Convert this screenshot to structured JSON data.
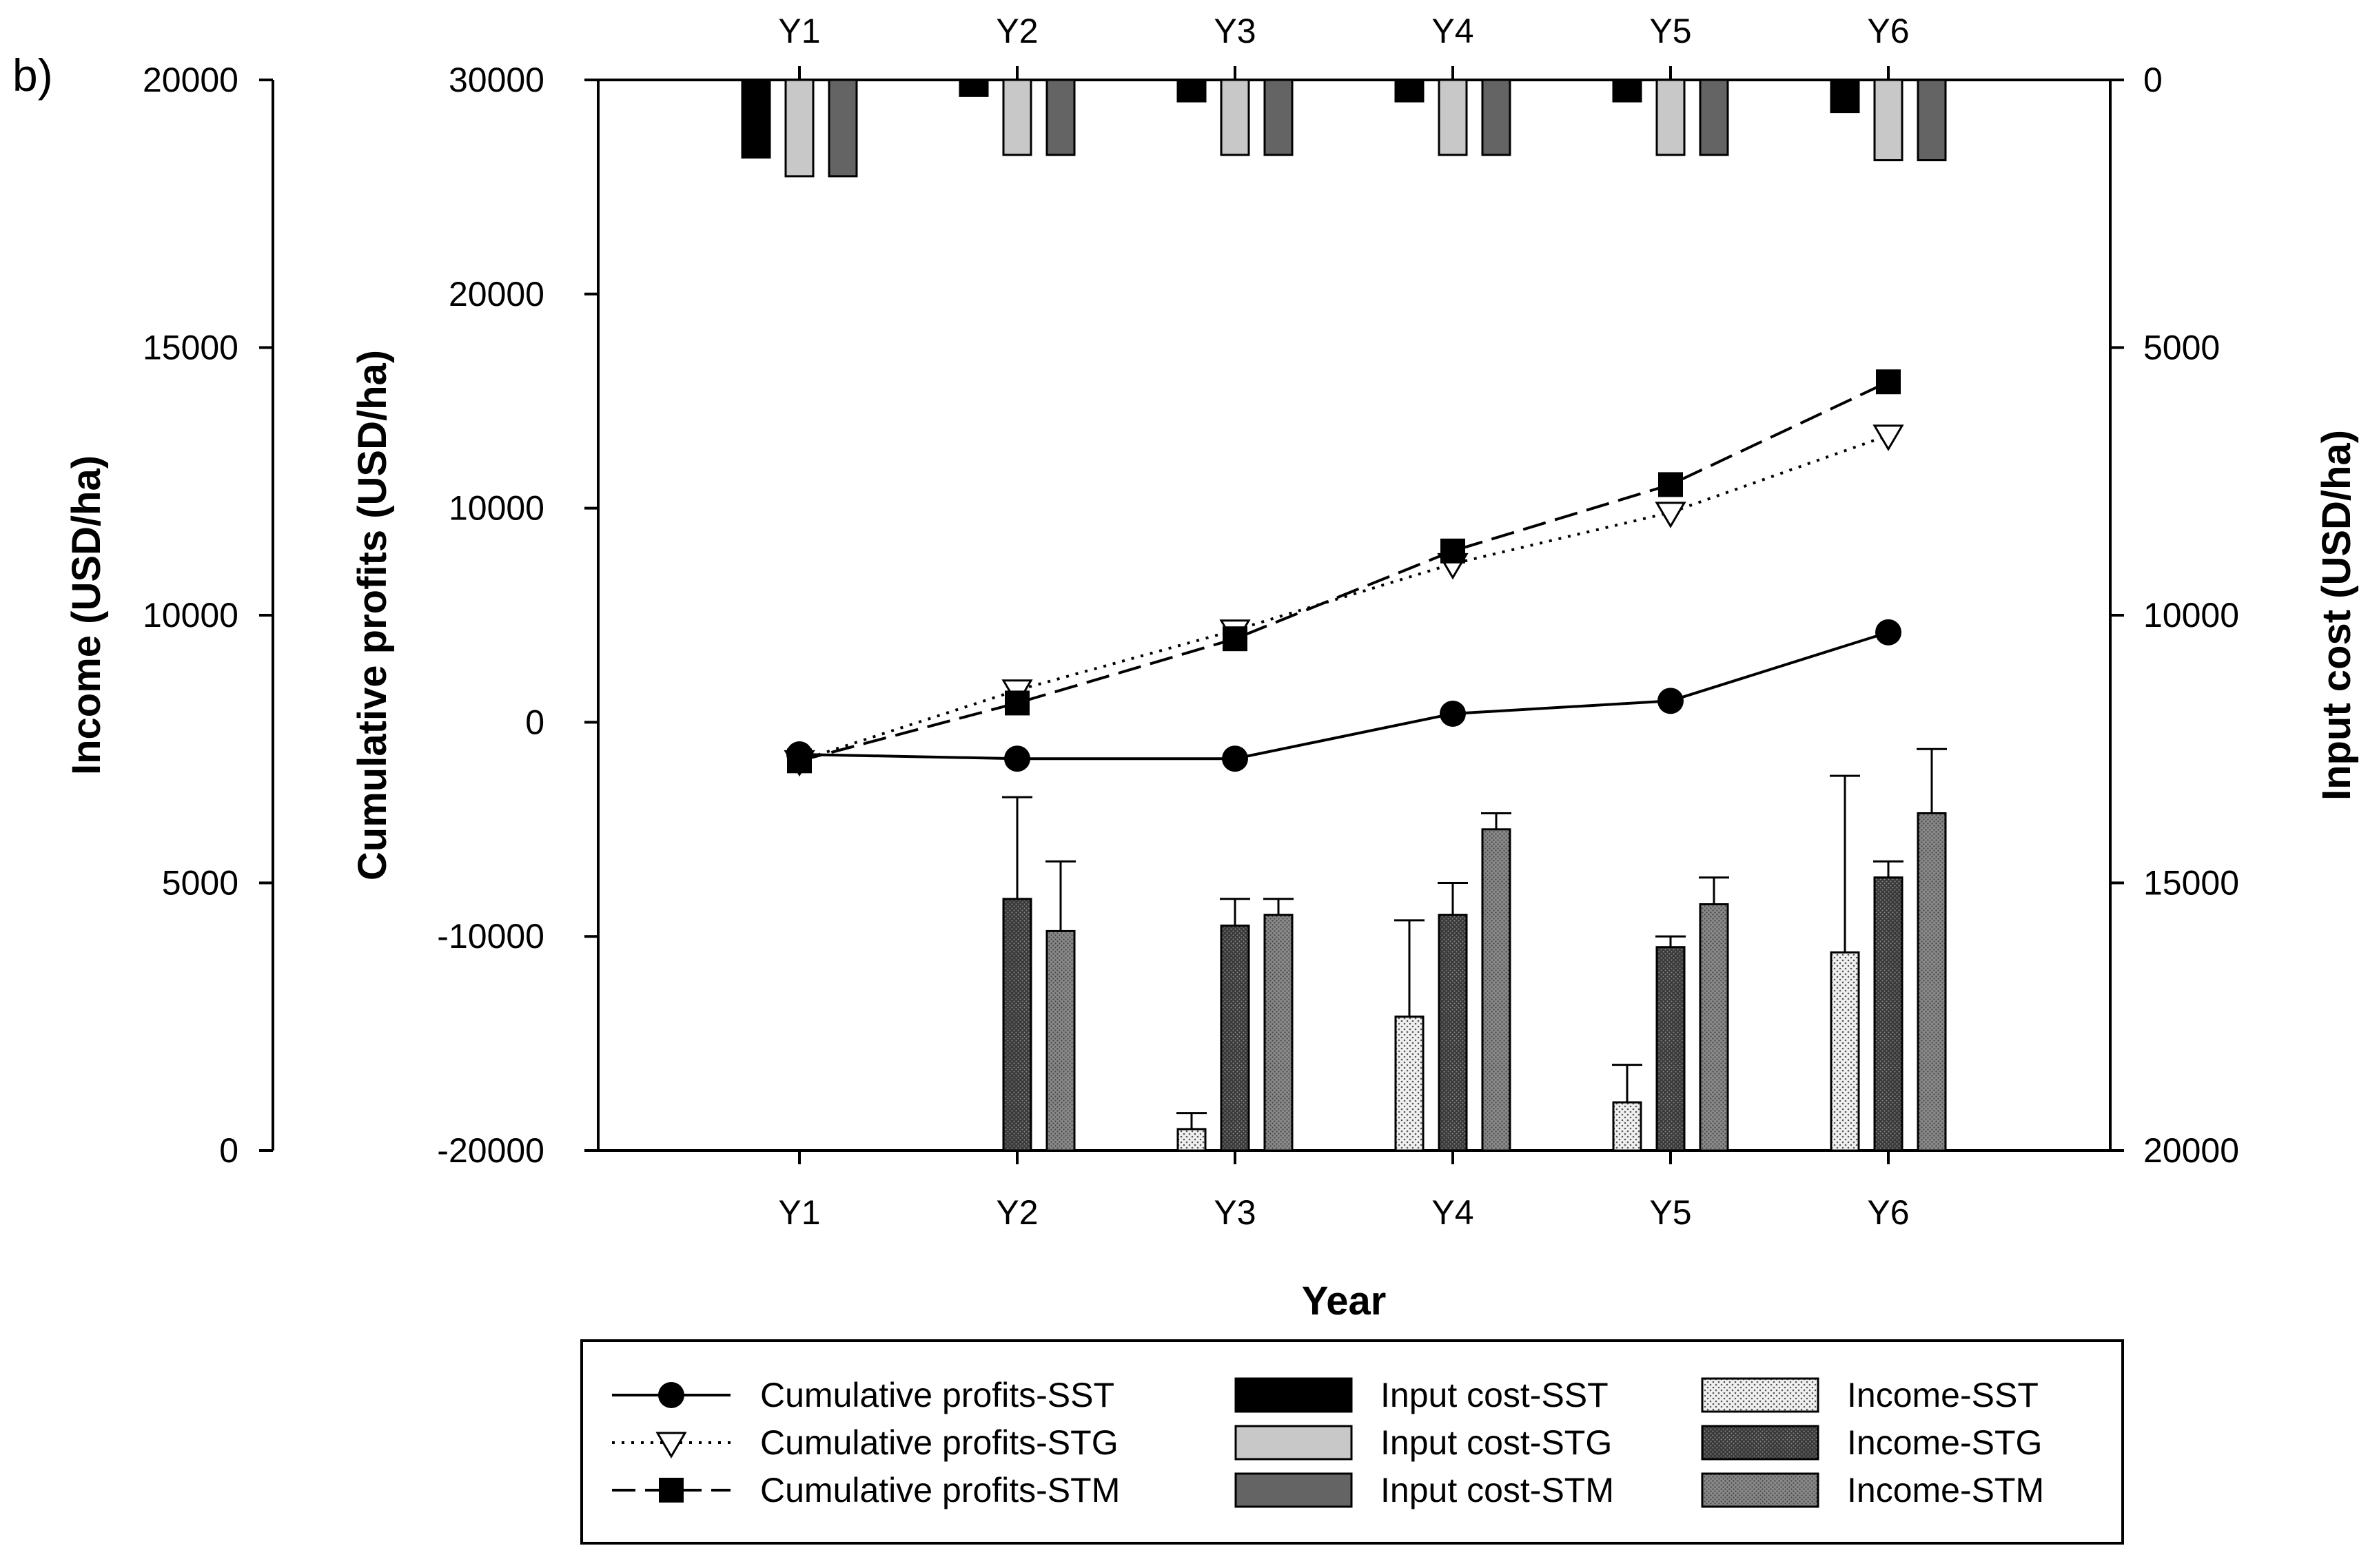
{
  "chart_data": {
    "type": "bar",
    "panel_label": "b)",
    "categories": [
      "Y1",
      "Y2",
      "Y3",
      "Y4",
      "Y5",
      "Y6"
    ],
    "xlabel": "Year",
    "axes": {
      "income": {
        "label": "Income (USD/ha)",
        "ylim": [
          0,
          20000
        ],
        "ticks": [
          "0",
          "5000",
          "10000",
          "15000",
          "20000"
        ]
      },
      "profits": {
        "label": "Cumulative profits (USD/ha)",
        "ylim": [
          -20000,
          30000
        ],
        "ticks": [
          "-20000",
          "-10000",
          "0",
          "10000",
          "20000",
          "30000"
        ]
      },
      "input_cost": {
        "label": "Input cost (USD/ha)",
        "ylim": [
          0,
          20000
        ],
        "inverted": true,
        "ticks": [
          "0",
          "5000",
          "10000",
          "15000",
          "20000"
        ]
      }
    },
    "profit_series": [
      {
        "name": "Cumulative profits-SST",
        "style": "solid",
        "marker": "circle",
        "values": [
          -1500,
          -1700,
          -1700,
          400,
          1000,
          4200
        ]
      },
      {
        "name": "Cumulative profits-STG",
        "style": "dotted",
        "marker": "triangle-down",
        "values": [
          -1800,
          1500,
          4300,
          7400,
          9800,
          13400
        ]
      },
      {
        "name": "Cumulative profits-STM",
        "style": "dashed",
        "marker": "square",
        "values": [
          -1800,
          900,
          3900,
          8000,
          11100,
          15900
        ]
      }
    ],
    "input_cost_series": [
      {
        "name": "Input cost-SST",
        "color": "#000000",
        "values": [
          1450,
          300,
          400,
          400,
          400,
          600
        ]
      },
      {
        "name": "Input cost-STG",
        "color": "#c8c8c8",
        "values": [
          1800,
          1400,
          1400,
          1400,
          1400,
          1500
        ]
      },
      {
        "name": "Input cost-STM",
        "color": "#646464",
        "values": [
          1800,
          1400,
          1400,
          1400,
          1400,
          1500
        ]
      }
    ],
    "income_series": [
      {
        "name": "Income-SST",
        "pattern": "light-dots",
        "values": [
          0,
          0,
          400,
          2500,
          900,
          3700
        ],
        "errors": [
          0,
          0,
          300,
          1800,
          700,
          3300
        ]
      },
      {
        "name": "Income-STG",
        "pattern": "dark-dots",
        "values": [
          0,
          4700,
          4200,
          4400,
          3800,
          5100
        ],
        "errors": [
          0,
          1900,
          500,
          600,
          200,
          300
        ]
      },
      {
        "name": "Income-STM",
        "pattern": "mid-dots",
        "values": [
          0,
          4100,
          4400,
          6000,
          4600,
          6300
        ],
        "errors": [
          0,
          1300,
          300,
          300,
          500,
          1200
        ]
      }
    ]
  }
}
